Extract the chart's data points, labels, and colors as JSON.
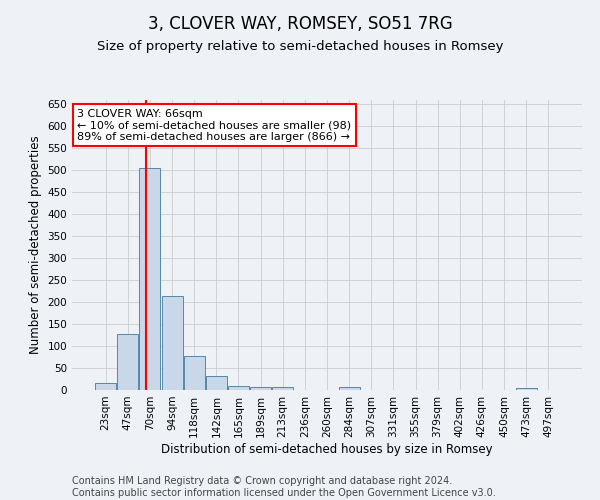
{
  "title": "3, CLOVER WAY, ROMSEY, SO51 7RG",
  "subtitle": "Size of property relative to semi-detached houses in Romsey",
  "xlabel": "Distribution of semi-detached houses by size in Romsey",
  "ylabel": "Number of semi-detached properties",
  "footer_line1": "Contains HM Land Registry data © Crown copyright and database right 2024.",
  "footer_line2": "Contains public sector information licensed under the Open Government Licence v3.0.",
  "bin_labels": [
    "23sqm",
    "47sqm",
    "70sqm",
    "94sqm",
    "118sqm",
    "142sqm",
    "165sqm",
    "189sqm",
    "213sqm",
    "236sqm",
    "260sqm",
    "284sqm",
    "307sqm",
    "331sqm",
    "355sqm",
    "379sqm",
    "402sqm",
    "426sqm",
    "450sqm",
    "473sqm",
    "497sqm"
  ],
  "bar_values": [
    17,
    127,
    506,
    214,
    78,
    31,
    8,
    7,
    6,
    0,
    0,
    6,
    0,
    0,
    0,
    0,
    0,
    0,
    0,
    5,
    0
  ],
  "bar_color": "#c8d8e8",
  "bar_edge_color": "#5588aa",
  "annotation_line1": "3 CLOVER WAY: 66sqm",
  "annotation_line2": "← 10% of semi-detached houses are smaller (98)",
  "annotation_line3": "89% of semi-detached houses are larger (866) →",
  "annotation_box_color": "white",
  "annotation_box_edge_color": "red",
  "ylim": [
    0,
    660
  ],
  "yticks": [
    0,
    50,
    100,
    150,
    200,
    250,
    300,
    350,
    400,
    450,
    500,
    550,
    600,
    650
  ],
  "grid_color": "#cccccc",
  "background_color": "#eef2f7",
  "title_fontsize": 12,
  "subtitle_fontsize": 9.5,
  "axis_label_fontsize": 8.5,
  "tick_fontsize": 7.5,
  "footer_fontsize": 7,
  "annot_fontsize": 8
}
